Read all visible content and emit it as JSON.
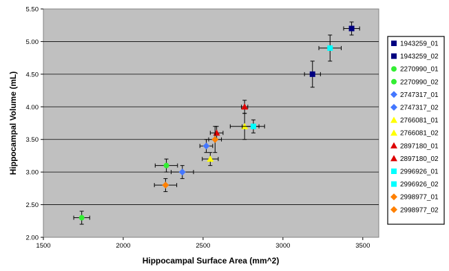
{
  "chart_data": {
    "type": "scatter",
    "xlabel": "Hippocampal Surface Area (mm^2)",
    "ylabel": "Hippocampal Volume (mL)",
    "xlim": [
      1500,
      3600
    ],
    "ylim": [
      2.0,
      5.5
    ],
    "x_ticks": [
      "1500",
      "2000",
      "2500",
      "3000",
      "3500"
    ],
    "y_ticks": [
      "2.00",
      "2.50",
      "3.00",
      "3.50",
      "4.00",
      "4.50",
      "5.00",
      "5.50"
    ],
    "x_tick_values": [
      1500,
      2000,
      2500,
      3000,
      3500
    ],
    "y_tick_values": [
      2.0,
      2.5,
      3.0,
      3.5,
      4.0,
      4.5,
      5.0,
      5.5
    ],
    "grid": "horizontal",
    "plot_background": "#c0c0c0",
    "legend_position": "right",
    "series": [
      {
        "name": "1943259_01",
        "color": "#000080",
        "marker": "square",
        "x": 3430,
        "y": 5.2,
        "x_err": 50,
        "y_err": 0.1
      },
      {
        "name": "1943259_02",
        "color": "#000080",
        "marker": "square",
        "x": 3185,
        "y": 4.5,
        "x_err": 50,
        "y_err": 0.2
      },
      {
        "name": "2270990_01",
        "color": "#33ee33",
        "marker": "circle",
        "x": 1740,
        "y": 2.3,
        "x_err": 50,
        "y_err": 0.1
      },
      {
        "name": "2270990_02",
        "color": "#33ee33",
        "marker": "circle",
        "x": 2270,
        "y": 3.1,
        "x_err": 70,
        "y_err": 0.1
      },
      {
        "name": "2747317_01",
        "color": "#4477ff",
        "marker": "diamond",
        "x": 2370,
        "y": 3.0,
        "x_err": 70,
        "y_err": 0.1
      },
      {
        "name": "2747317_02",
        "color": "#4477ff",
        "marker": "diamond",
        "x": 2520,
        "y": 3.4,
        "x_err": 40,
        "y_err": 0.1
      },
      {
        "name": "2766081_01",
        "color": "#ffff00",
        "marker": "triangle",
        "x": 2545,
        "y": 3.2,
        "x_err": 50,
        "y_err": 0.1
      },
      {
        "name": "2766081_02",
        "color": "#ffff00",
        "marker": "triangle",
        "x": 2760,
        "y": 3.7,
        "x_err": 90,
        "y_err": 0.2
      },
      {
        "name": "2897180_01",
        "color": "#dd0000",
        "marker": "triangle",
        "x": 2585,
        "y": 3.6,
        "x_err": 40,
        "y_err": 0.1
      },
      {
        "name": "2897180_02",
        "color": "#dd0000",
        "marker": "triangle",
        "x": 2760,
        "y": 4.0,
        "x_err": 20,
        "y_err": 0.1
      },
      {
        "name": "2996926_01",
        "color": "#00ffff",
        "marker": "square",
        "x": 2815,
        "y": 3.7,
        "x_err": 70,
        "y_err": 0.1
      },
      {
        "name": "2996926_02",
        "color": "#00ffff",
        "marker": "square",
        "x": 3295,
        "y": 4.9,
        "x_err": 70,
        "y_err": 0.2
      },
      {
        "name": "2998977_01",
        "color": "#ff8000",
        "marker": "diamond",
        "x": 2265,
        "y": 2.8,
        "x_err": 70,
        "y_err": 0.1
      },
      {
        "name": "2998977_02",
        "color": "#ff8000",
        "marker": "diamond",
        "x": 2575,
        "y": 3.5,
        "x_err": 40,
        "y_err": 0.2
      }
    ]
  }
}
